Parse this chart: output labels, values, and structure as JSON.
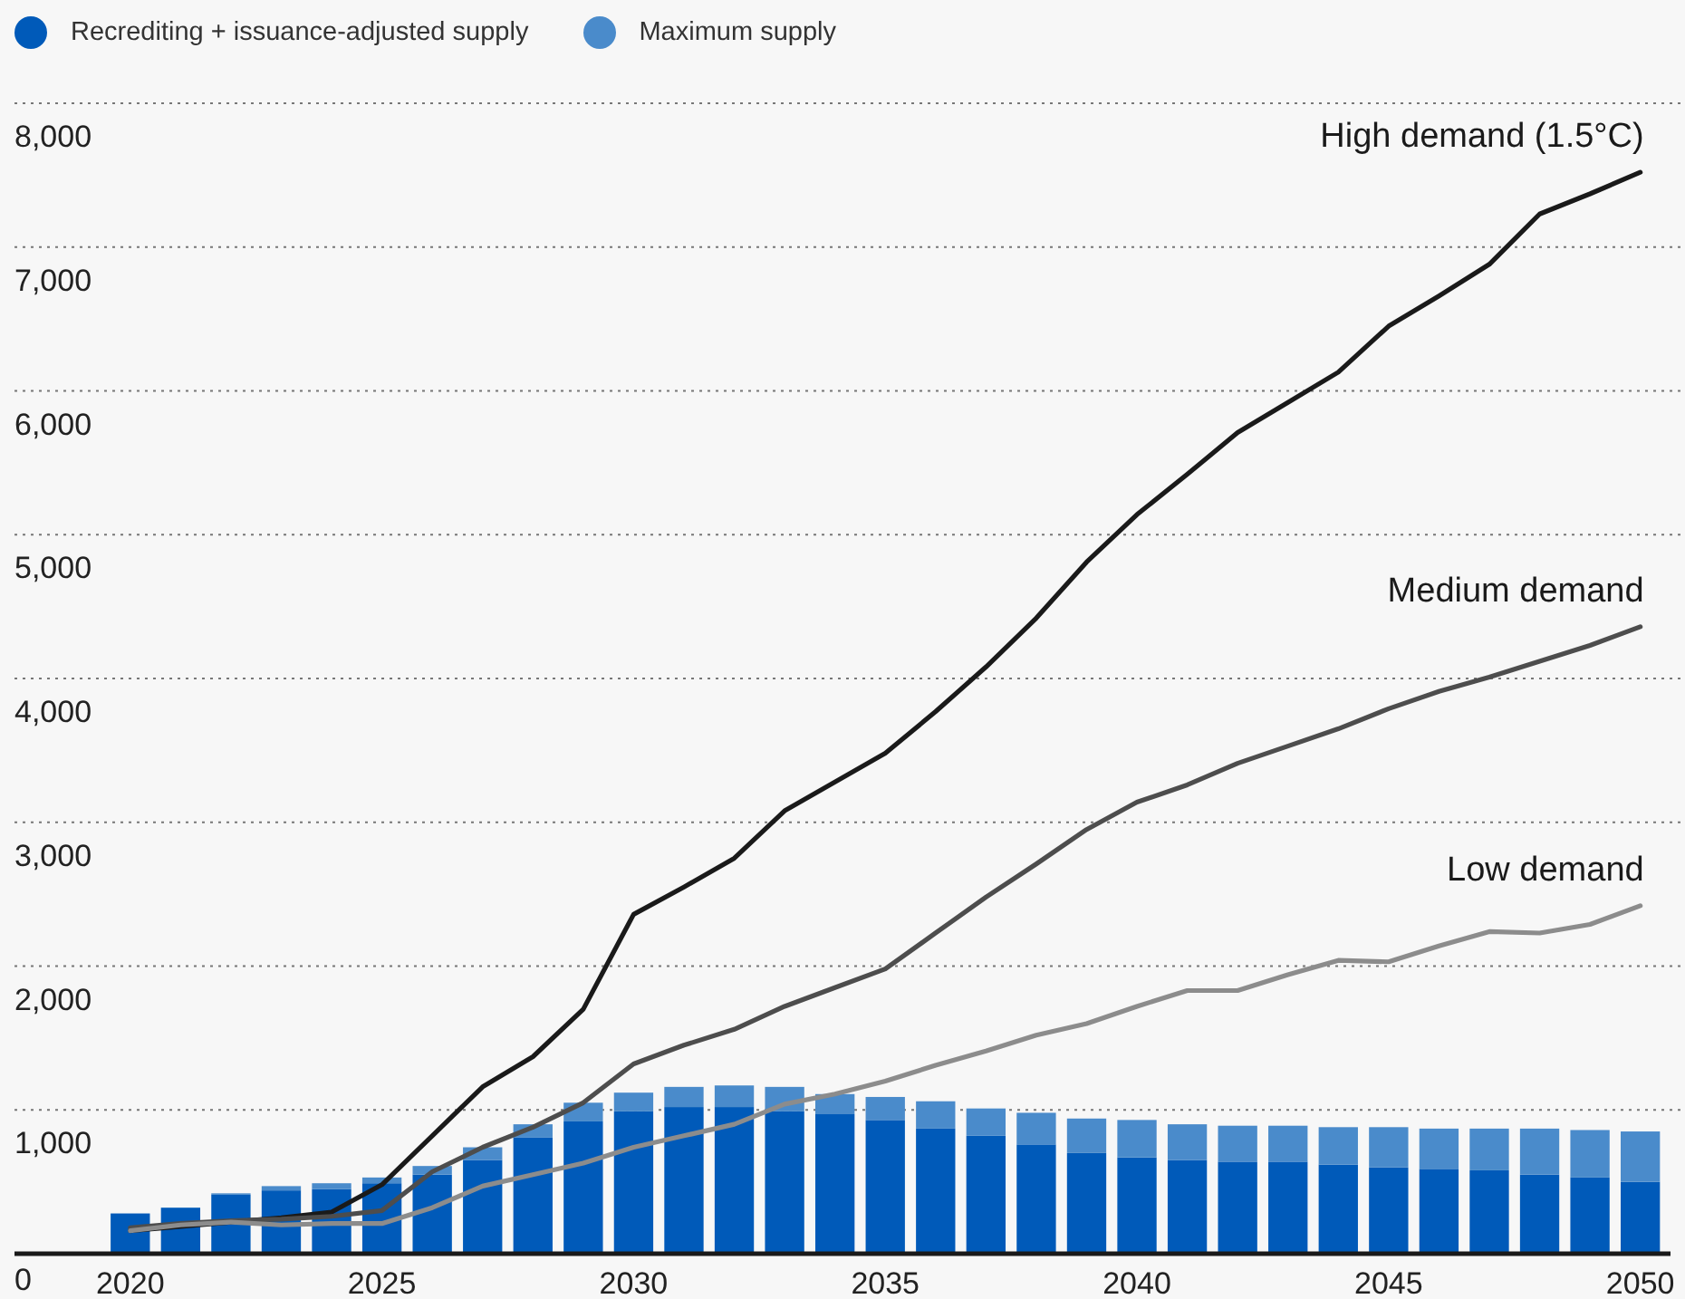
{
  "chart_data": {
    "type": "bar",
    "stacked": true,
    "x": [
      2020,
      2021,
      2022,
      2023,
      2024,
      2025,
      2026,
      2027,
      2028,
      2029,
      2030,
      2031,
      2032,
      2033,
      2034,
      2035,
      2036,
      2037,
      2038,
      2039,
      2040,
      2041,
      2042,
      2043,
      2044,
      2045,
      2046,
      2047,
      2048,
      2049,
      2050
    ],
    "xlim": [
      2017.7,
      2050.6
    ],
    "xticks": [
      2020,
      2025,
      2030,
      2035,
      2040,
      2045,
      2050
    ],
    "ylim": [
      0,
      8000
    ],
    "yticks": [
      0,
      {
        "value": 1000,
        "label": "1,000"
      },
      {
        "value": 2000,
        "label": "2,000"
      },
      {
        "value": 3000,
        "label": "3,000"
      },
      {
        "value": 4000,
        "label": "4,000"
      },
      {
        "value": 5000,
        "label": "5,000"
      },
      {
        "value": 6000,
        "label": "6,000"
      },
      {
        "value": 7000,
        "label": "7,000"
      },
      {
        "value": 8000,
        "label": "8,000"
      }
    ],
    "grid": "y",
    "legend": "top left",
    "series": [
      {
        "name": "Recrediting + issuance-adjusted supply",
        "color": "#005ab9",
        "values": [
          280,
          320,
          410,
          440,
          450,
          490,
          550,
          650,
          810,
          920,
          990,
          1020,
          1020,
          990,
          970,
          930,
          870,
          820,
          760,
          700,
          670,
          650,
          640,
          640,
          620,
          600,
          590,
          580,
          550,
          530,
          500
        ]
      },
      {
        "name": "Maximum supply",
        "color": "#4a8bcb",
        "values": [
          0,
          0,
          10,
          30,
          40,
          40,
          60,
          90,
          90,
          130,
          130,
          140,
          150,
          170,
          140,
          160,
          190,
          190,
          220,
          240,
          260,
          250,
          250,
          250,
          260,
          280,
          280,
          290,
          320,
          330,
          350
        ]
      },
      {
        "name": "High demand (1.5°C)",
        "type": "line",
        "color": "#1a1a1a",
        "values": [
          160,
          190,
          220,
          250,
          290,
          480,
          820,
          1160,
          1370,
          1700,
          2360,
          2550,
          2750,
          3080,
          3280,
          3480,
          3770,
          4080,
          4420,
          4810,
          5140,
          5420,
          5710,
          5920,
          6130,
          6450,
          6660,
          6880,
          7230,
          7370,
          7520
        ]
      },
      {
        "name": "Medium demand",
        "type": "line",
        "color": "#4d4d4d",
        "values": [
          180,
          210,
          230,
          240,
          260,
          300,
          570,
          740,
          880,
          1050,
          1320,
          1450,
          1560,
          1720,
          1850,
          1980,
          2230,
          2480,
          2710,
          2950,
          3140,
          3260,
          3410,
          3530,
          3650,
          3790,
          3910,
          4010,
          4120,
          4230,
          4360
        ]
      },
      {
        "name": "Low demand",
        "type": "line",
        "color": "#8c8c8c",
        "values": [
          160,
          200,
          220,
          200,
          210,
          210,
          320,
          470,
          550,
          630,
          740,
          820,
          900,
          1040,
          1110,
          1200,
          1310,
          1410,
          1520,
          1600,
          1720,
          1830,
          1830,
          1940,
          2040,
          2030,
          2140,
          2240,
          2230,
          2290,
          2420
        ]
      }
    ]
  }
}
